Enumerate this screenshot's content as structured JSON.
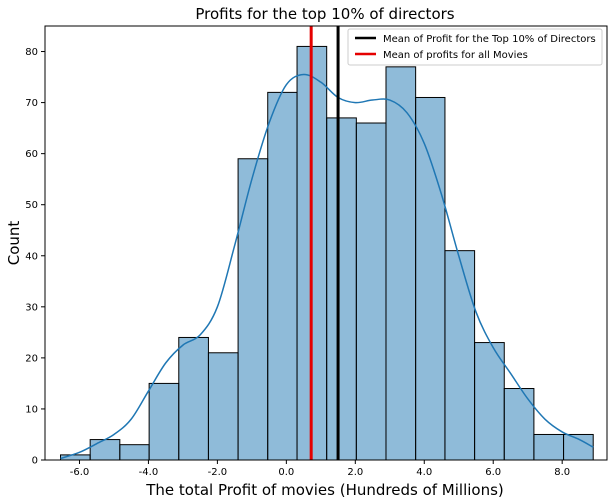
{
  "chart_data": {
    "type": "bar",
    "title": "Profits for the top 10% of directors",
    "xlabel": "The total Profit of movies (Hundreds of Millions)",
    "ylabel": "Count",
    "xlim": [
      -7.0,
      9.3
    ],
    "ylim": [
      0,
      85
    ],
    "x_ticks": [
      -6.0,
      -4.0,
      -2.0,
      0.0,
      2.0,
      4.0,
      6.0,
      8.0
    ],
    "x_tick_labels": [
      "-6.0",
      "-4.0",
      "-2.0",
      "0.0",
      "2.0",
      "4.0",
      "6.0",
      "8.0"
    ],
    "y_ticks": [
      0,
      10,
      20,
      30,
      40,
      50,
      60,
      70,
      80
    ],
    "y_tick_labels": [
      "0",
      "10",
      "20",
      "30",
      "40",
      "50",
      "60",
      "70",
      "80"
    ],
    "bins": [
      -6.55,
      -5.69,
      -4.83,
      -3.98,
      -3.12,
      -2.26,
      -1.4,
      -0.54,
      0.31,
      1.17,
      2.03,
      2.89,
      3.75,
      4.6,
      5.46,
      6.32,
      7.18,
      8.04,
      8.9
    ],
    "counts": [
      1,
      4,
      3,
      15,
      24,
      21,
      59,
      72,
      81,
      67,
      66,
      77,
      71,
      41,
      23,
      14,
      5,
      5
    ],
    "hist_color": "#1f77b4",
    "kde": {
      "x": [
        -6.55,
        -6.0,
        -5.5,
        -5.0,
        -4.5,
        -4.0,
        -3.5,
        -3.0,
        -2.5,
        -2.0,
        -1.5,
        -1.0,
        -0.5,
        0.0,
        0.5,
        1.0,
        1.5,
        2.0,
        2.5,
        3.0,
        3.5,
        4.0,
        4.5,
        5.0,
        5.5,
        6.0,
        6.5,
        7.0,
        7.5,
        8.0,
        8.5,
        8.9
      ],
      "y": [
        0.3,
        1.5,
        3.2,
        5.0,
        8.0,
        13.5,
        19.0,
        22.5,
        24.5,
        30.0,
        42.0,
        55.0,
        66.0,
        73.5,
        75.5,
        74.0,
        71.0,
        70.0,
        70.5,
        70.5,
        68.0,
        62.0,
        52.0,
        40.0,
        29.0,
        22.0,
        17.0,
        12.0,
        8.0,
        5.5,
        4.0,
        2.5
      ]
    },
    "vlines": [
      {
        "name": "Mean of Profit for the Top 10% of Directors",
        "x": 1.5,
        "color": "#000000"
      },
      {
        "name": "Mean of profits for all Movies",
        "x": 0.72,
        "color": "#e50000"
      }
    ],
    "legend_position": "top-right"
  }
}
